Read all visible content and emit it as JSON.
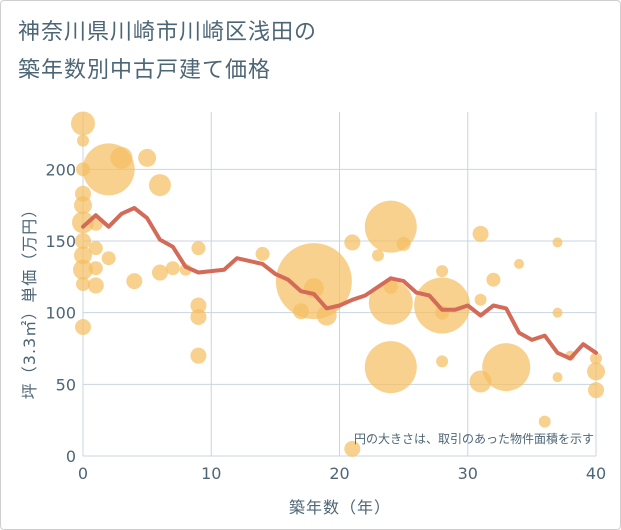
{
  "chart_data": {
    "type": "scatter",
    "title_lines": [
      "神奈川県川崎市川崎区浅田の",
      "築年数別中古戸建て価格"
    ],
    "xlabel": "築年数（年）",
    "ylabel": "坪（3.3㎡）単価（万円）",
    "annotation": "円の大きさは、取引のあった物件面積を示す",
    "xlim": [
      0,
      40
    ],
    "ylim": [
      0,
      240
    ],
    "x_ticks": [
      "0",
      "10",
      "20",
      "30",
      "40"
    ],
    "y_ticks": [
      "0",
      "50",
      "100",
      "150",
      "200"
    ],
    "grid": true,
    "colors": {
      "bubble": "#f5bf62",
      "line": "#d46a58",
      "grid": "#c8d5e0"
    },
    "bubbles": [
      {
        "x": 0,
        "y": 232,
        "s": 12
      },
      {
        "x": 0,
        "y": 220,
        "s": 6
      },
      {
        "x": 0,
        "y": 200,
        "s": 7
      },
      {
        "x": 0,
        "y": 183,
        "s": 8
      },
      {
        "x": 0,
        "y": 175,
        "s": 9
      },
      {
        "x": 0,
        "y": 163,
        "s": 11
      },
      {
        "x": 0,
        "y": 150,
        "s": 8
      },
      {
        "x": 0,
        "y": 140,
        "s": 9
      },
      {
        "x": 0,
        "y": 130,
        "s": 10
      },
      {
        "x": 0,
        "y": 120,
        "s": 7
      },
      {
        "x": 0,
        "y": 90,
        "s": 8
      },
      {
        "x": 1,
        "y": 162,
        "s": 7
      },
      {
        "x": 1,
        "y": 145,
        "s": 7
      },
      {
        "x": 1,
        "y": 131,
        "s": 7
      },
      {
        "x": 1,
        "y": 119,
        "s": 8
      },
      {
        "x": 2,
        "y": 200,
        "s": 26
      },
      {
        "x": 2,
        "y": 138,
        "s": 7
      },
      {
        "x": 3,
        "y": 208,
        "s": 11
      },
      {
        "x": 4,
        "y": 122,
        "s": 8
      },
      {
        "x": 5,
        "y": 208,
        "s": 9
      },
      {
        "x": 6,
        "y": 189,
        "s": 11
      },
      {
        "x": 6,
        "y": 128,
        "s": 8
      },
      {
        "x": 7,
        "y": 131,
        "s": 7
      },
      {
        "x": 8,
        "y": 130,
        "s": 6
      },
      {
        "x": 9,
        "y": 145,
        "s": 7
      },
      {
        "x": 9,
        "y": 105,
        "s": 8
      },
      {
        "x": 9,
        "y": 97,
        "s": 8
      },
      {
        "x": 9,
        "y": 70,
        "s": 8
      },
      {
        "x": 14,
        "y": 141,
        "s": 7
      },
      {
        "x": 17,
        "y": 101,
        "s": 8
      },
      {
        "x": 18,
        "y": 122,
        "s": 38
      },
      {
        "x": 18,
        "y": 117,
        "s": 10
      },
      {
        "x": 19,
        "y": 98,
        "s": 10
      },
      {
        "x": 21,
        "y": 149,
        "s": 8
      },
      {
        "x": 21,
        "y": 5,
        "s": 8
      },
      {
        "x": 23,
        "y": 140,
        "s": 6
      },
      {
        "x": 24,
        "y": 160,
        "s": 26
      },
      {
        "x": 24,
        "y": 118,
        "s": 7
      },
      {
        "x": 24,
        "y": 107,
        "s": 22
      },
      {
        "x": 24,
        "y": 62,
        "s": 26
      },
      {
        "x": 25,
        "y": 148,
        "s": 7
      },
      {
        "x": 28,
        "y": 129,
        "s": 6
      },
      {
        "x": 28,
        "y": 105,
        "s": 28
      },
      {
        "x": 28,
        "y": 100,
        "s": 7
      },
      {
        "x": 28,
        "y": 66,
        "s": 6
      },
      {
        "x": 31,
        "y": 155,
        "s": 8
      },
      {
        "x": 31,
        "y": 109,
        "s": 6
      },
      {
        "x": 31,
        "y": 52,
        "s": 11
      },
      {
        "x": 32,
        "y": 123,
        "s": 7
      },
      {
        "x": 33,
        "y": 62,
        "s": 24
      },
      {
        "x": 34,
        "y": 134,
        "s": 5
      },
      {
        "x": 36,
        "y": 24,
        "s": 6
      },
      {
        "x": 37,
        "y": 149,
        "s": 5
      },
      {
        "x": 37,
        "y": 100,
        "s": 5
      },
      {
        "x": 37,
        "y": 55,
        "s": 5
      },
      {
        "x": 38,
        "y": 70,
        "s": 5
      },
      {
        "x": 40,
        "y": 68,
        "s": 6
      },
      {
        "x": 40,
        "y": 59,
        "s": 9
      },
      {
        "x": 40,
        "y": 46,
        "s": 8
      }
    ],
    "trend": {
      "x": [
        0,
        1,
        2,
        3,
        4,
        5,
        6,
        7,
        8,
        9,
        10,
        11,
        12,
        13,
        14,
        15,
        16,
        17,
        18,
        19,
        20,
        21,
        22,
        23,
        24,
        25,
        26,
        27,
        28,
        29,
        30,
        31,
        32,
        33,
        34,
        35,
        36,
        37,
        38,
        39,
        40
      ],
      "y": [
        160,
        168,
        160,
        169,
        173,
        166,
        151,
        146,
        132,
        128,
        129,
        130,
        138,
        136,
        134,
        127,
        123,
        115,
        113,
        103,
        105,
        109,
        112,
        118,
        124,
        122,
        114,
        112,
        102,
        102,
        105,
        98,
        105,
        103,
        86,
        81,
        84,
        72,
        68,
        78,
        72
      ]
    }
  }
}
